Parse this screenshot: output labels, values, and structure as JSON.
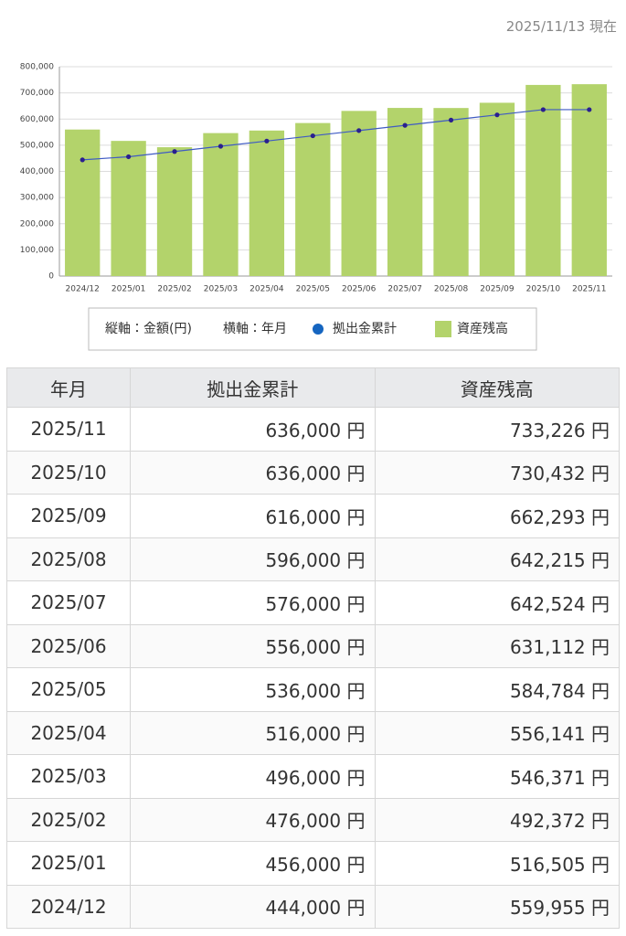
{
  "header": {
    "date": "2025/11/13 現在"
  },
  "chart_data": {
    "type": "bar",
    "categories": [
      "2024/12",
      "2025/01",
      "2025/02",
      "2025/03",
      "2025/04",
      "2025/05",
      "2025/06",
      "2025/07",
      "2025/08",
      "2025/09",
      "2025/10",
      "2025/11"
    ],
    "series": [
      {
        "name": "資産残高",
        "type": "bar",
        "color": "#b3d36b",
        "values": [
          559955,
          516505,
          492372,
          546371,
          556141,
          584784,
          631112,
          642524,
          642215,
          662293,
          730432,
          733226
        ]
      },
      {
        "name": "拠出金累計",
        "type": "line",
        "color": "#3f5bc4",
        "marker_color": "#2a1f8f",
        "legend_color": "#1565c0",
        "values": [
          444000,
          456000,
          476000,
          496000,
          516000,
          536000,
          556000,
          576000,
          596000,
          616000,
          636000,
          636000
        ]
      }
    ],
    "y_label": "縦軸：金額(円)",
    "x_label": "横軸：年月",
    "ylim": [
      0,
      800000
    ],
    "yticks": [
      0,
      {
        "value": 100000,
        "label": "100,000"
      },
      {
        "value": 200000,
        "label": "200,000"
      },
      {
        "value": 300000,
        "label": "300,000"
      },
      {
        "value": 400000,
        "label": "400,000"
      },
      {
        "value": 500000,
        "label": "500,000"
      },
      {
        "value": 600000,
        "label": "600,000"
      },
      {
        "value": 700000,
        "label": "700,000"
      },
      {
        "value": 800000,
        "label": "800,000"
      }
    ],
    "grid": true,
    "legend": "bottom"
  },
  "table": {
    "headers": [
      "年月",
      "拠出金累計",
      "資産残高"
    ],
    "rows": [
      [
        "2025/11",
        "636,000 円",
        "733,226 円"
      ],
      [
        "2025/10",
        "636,000 円",
        "730,432 円"
      ],
      [
        "2025/09",
        "616,000 円",
        "662,293 円"
      ],
      [
        "2025/08",
        "596,000 円",
        "642,215 円"
      ],
      [
        "2025/07",
        "576,000 円",
        "642,524 円"
      ],
      [
        "2025/06",
        "556,000 円",
        "631,112 円"
      ],
      [
        "2025/05",
        "536,000 円",
        "584,784 円"
      ],
      [
        "2025/04",
        "516,000 円",
        "556,141 円"
      ],
      [
        "2025/03",
        "496,000 円",
        "546,371 円"
      ],
      [
        "2025/02",
        "476,000 円",
        "492,372 円"
      ],
      [
        "2025/01",
        "456,000 円",
        "516,505 円"
      ],
      [
        "2024/12",
        "444,000 円",
        "559,955 円"
      ]
    ]
  }
}
